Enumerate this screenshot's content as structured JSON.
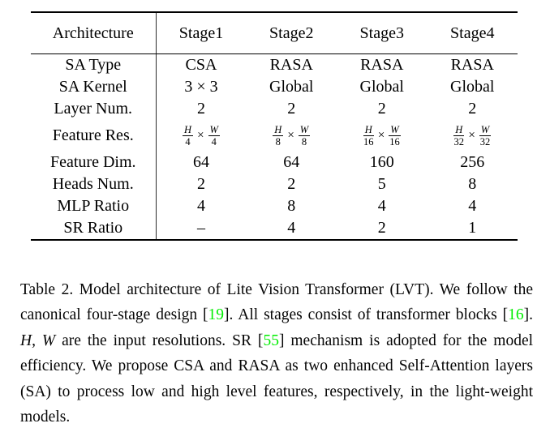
{
  "colors": {
    "background": "#ffffff",
    "text": "#000000",
    "citation_green": "#00ee00"
  },
  "table": {
    "header": {
      "architecture": "Architecture",
      "stages": [
        "Stage1",
        "Stage2",
        "Stage3",
        "Stage4"
      ]
    },
    "rows": [
      {
        "label": "SA Type",
        "values": [
          "CSA",
          "RASA",
          "RASA",
          "RASA"
        ]
      },
      {
        "label": "SA Kernel",
        "values": [
          "3 × 3",
          "Global",
          "Global",
          "Global"
        ]
      },
      {
        "label": "Layer Num.",
        "values": [
          "2",
          "2",
          "2",
          "2"
        ]
      },
      {
        "label": "Feature Res.",
        "cells": [
          {
            "num1": "H",
            "den1": "4",
            "times": "×",
            "num2": "W",
            "den2": "4"
          },
          {
            "num1": "H",
            "den1": "8",
            "times": "×",
            "num2": "W",
            "den2": "8"
          },
          {
            "num1": "H",
            "den1": "16",
            "times": "×",
            "num2": "W",
            "den2": "16"
          },
          {
            "num1": "H",
            "den1": "32",
            "times": "×",
            "num2": "W",
            "den2": "32"
          }
        ]
      },
      {
        "label": "Feature Dim.",
        "values": [
          "64",
          "64",
          "160",
          "256"
        ]
      },
      {
        "label": "Heads Num.",
        "values": [
          "2",
          "2",
          "5",
          "8"
        ]
      },
      {
        "label": "MLP Ratio",
        "values": [
          "4",
          "8",
          "4",
          "4"
        ]
      },
      {
        "label": "SR Ratio",
        "values": [
          "–",
          "4",
          "2",
          "1"
        ]
      }
    ]
  },
  "caption": {
    "cite_color": "#00ee00",
    "segments": [
      {
        "style": "text",
        "text": "Table 2. Model architecture of Lite Vision Transformer (LVT). We follow the canonical four-stage design ["
      },
      {
        "style": "cite",
        "text": "19"
      },
      {
        "style": "text",
        "text": "].  All stages consist of transformer blocks ["
      },
      {
        "style": "cite",
        "text": "16"
      },
      {
        "style": "text",
        "text": "].  "
      },
      {
        "style": "math",
        "text": "H, W"
      },
      {
        "style": "text",
        "text": " are the input resolutions. SR ["
      },
      {
        "style": "cite",
        "text": "55"
      },
      {
        "style": "text",
        "text": "] mechanism is adopted for the model efficiency. We propose CSA and RASA as two enhanced Self-Attention layers (SA) to process low and high level features, respectively, in the light-weight models."
      }
    ]
  }
}
